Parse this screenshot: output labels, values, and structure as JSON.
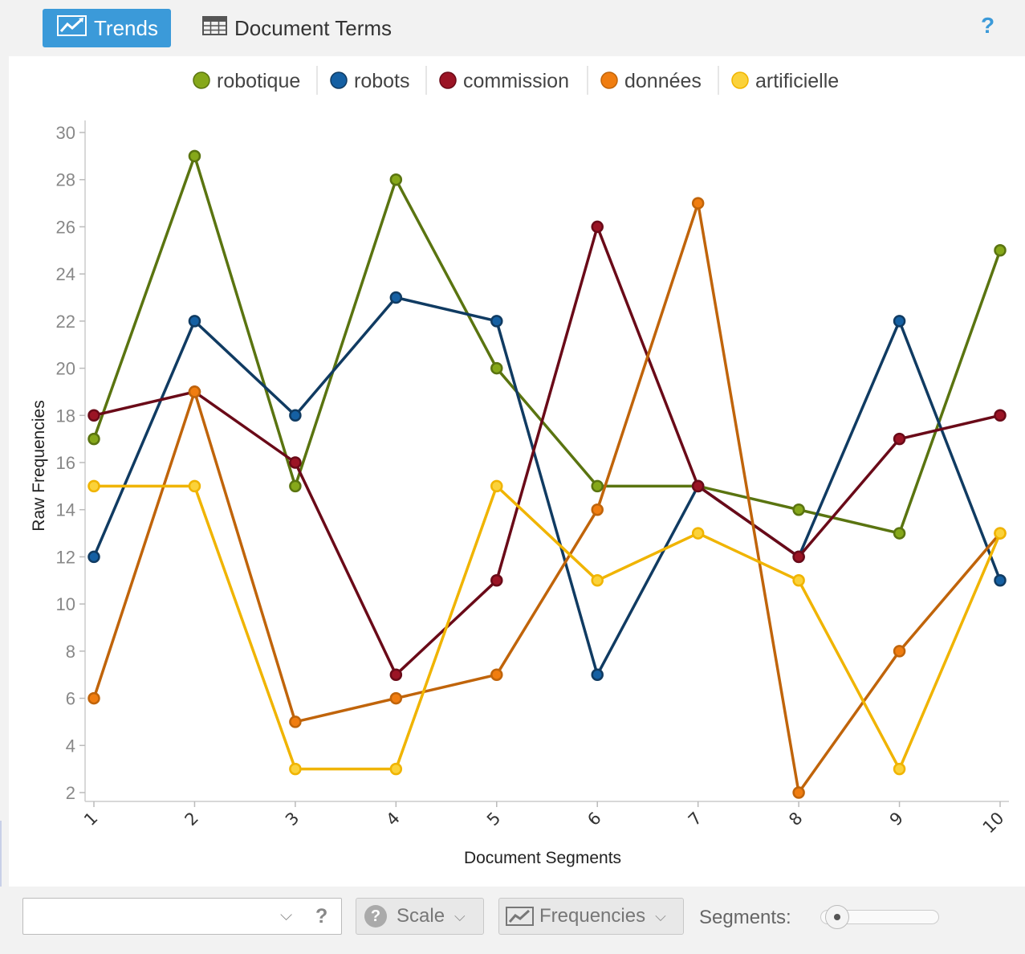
{
  "toolbar": {
    "tab_trends": "Trends",
    "tab_document_terms": "Document Terms",
    "help": "?"
  },
  "bottombar": {
    "combo_value": "",
    "combo_help": "?",
    "scale_label": "Scale",
    "frequencies_label": "Frequencies",
    "segments_label": "Segments:",
    "segments_slider_value": 0
  },
  "chart_data": {
    "type": "line",
    "x": [
      1,
      2,
      3,
      4,
      5,
      6,
      7,
      8,
      9,
      10
    ],
    "xlabel": "Document Segments",
    "ylabel": "Raw Frequencies",
    "ylim": [
      2,
      30
    ],
    "yticks": [
      2,
      4,
      6,
      8,
      10,
      12,
      14,
      16,
      18,
      20,
      22,
      24,
      26,
      28,
      30
    ],
    "legend_position": "top",
    "series": [
      {
        "name": "robotique",
        "color": "#5a7410",
        "marker": "#86a81a",
        "values": [
          17,
          29,
          15,
          28,
          20,
          15,
          15,
          14,
          13,
          25
        ]
      },
      {
        "name": "robots",
        "color": "#103b62",
        "marker": "#1560a3",
        "values": [
          12,
          22,
          18,
          23,
          22,
          7,
          15,
          12,
          22,
          11
        ]
      },
      {
        "name": "commission",
        "color": "#6a0a18",
        "marker": "#9b1425",
        "values": [
          18,
          19,
          16,
          7,
          11,
          26,
          15,
          12,
          17,
          18
        ]
      },
      {
        "name": "données",
        "color": "#c0640a",
        "marker": "#f07d10",
        "values": [
          6,
          19,
          5,
          6,
          7,
          14,
          27,
          2,
          8,
          13
        ]
      },
      {
        "name": "artificielle",
        "color": "#f0b400",
        "marker": "#fbd23a",
        "values": [
          15,
          15,
          3,
          3,
          15,
          11,
          13,
          11,
          3,
          13
        ]
      }
    ]
  }
}
